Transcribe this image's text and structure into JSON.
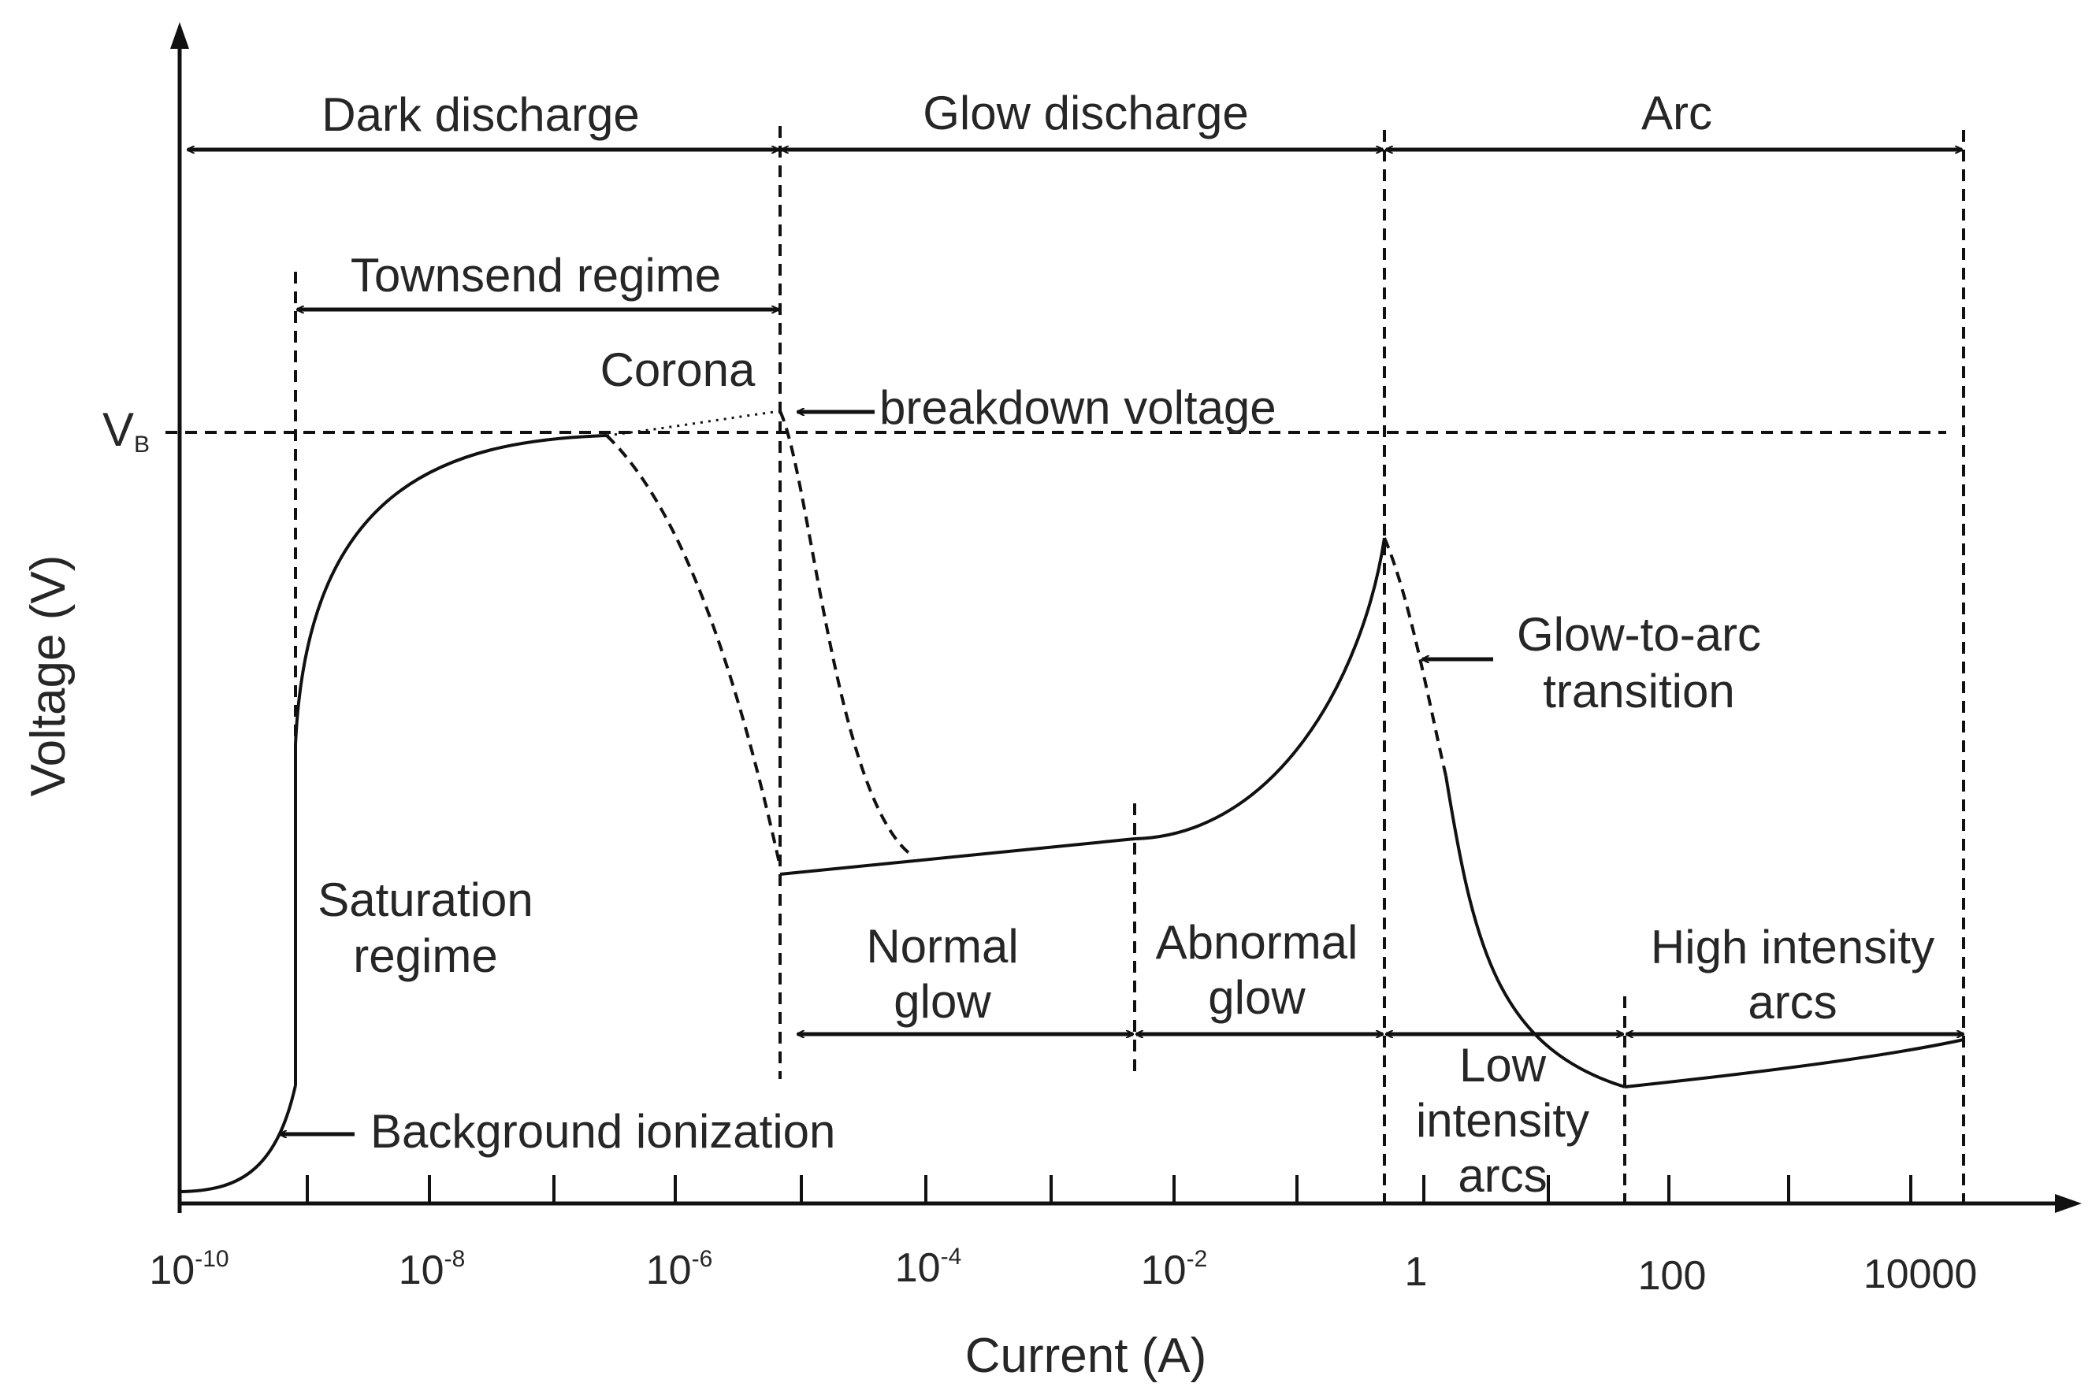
{
  "axes": {
    "x_title": "Current (A)",
    "y_title": "Voltage (V)",
    "vb_symbol": "V",
    "vb_subscript": "B",
    "x_ticks": [
      {
        "base": "10",
        "exp": "-10"
      },
      {
        "base": "10",
        "exp": "-8"
      },
      {
        "base": "10",
        "exp": "-6"
      },
      {
        "base": "10",
        "exp": "-4"
      },
      {
        "base": "10",
        "exp": "-2"
      },
      {
        "base": "1",
        "exp": ""
      },
      {
        "base": "100",
        "exp": ""
      },
      {
        "base": "10000",
        "exp": ""
      }
    ]
  },
  "regions": {
    "dark_discharge": "Dark discharge",
    "glow_discharge": "Glow discharge",
    "arc": "Arc",
    "townsend_regime": "Townsend regime",
    "corona": "Corona",
    "breakdown_voltage": "breakdown voltage",
    "saturation_line1": "Saturation",
    "saturation_line2": "regime",
    "background_ionization": "Background ionization",
    "normal_glow_line1": "Normal",
    "normal_glow_line2": "glow",
    "abnormal_glow_line1": "Abnormal",
    "abnormal_glow_line2": "glow",
    "glow_to_arc_line1": "Glow-to-arc",
    "glow_to_arc_line2": "transition",
    "high_intensity_line1": "High intensity",
    "high_intensity_line2": "arcs",
    "low_intensity_line1": "Low",
    "low_intensity_line2": "intensity",
    "low_intensity_line3": "arcs"
  },
  "colors": {
    "ink": "#111111",
    "text": "#262626",
    "background": "#ffffff"
  }
}
